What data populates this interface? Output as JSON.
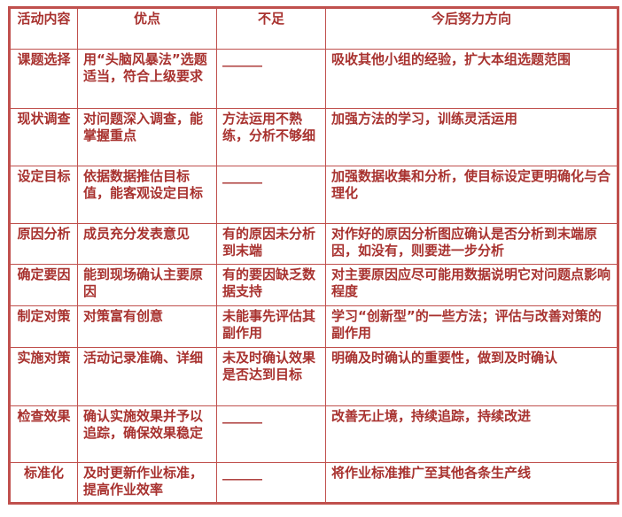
{
  "colors": {
    "text": "#a8322f",
    "border": "#c0504d"
  },
  "headers": [
    "活动内容",
    "优点",
    "不足",
    "今后努力方向"
  ],
  "rows": [
    {
      "activity": "课题选择",
      "strength": "用“头脑风暴法”选题适当，符合上级要求",
      "weakness": "______",
      "direction": "吸收其他小组的经验，扩大本组选题范围"
    },
    {
      "activity": "现状调查",
      "strength": "对问题深入调查，能掌握重点",
      "weakness": "方法运用不熟练，分析不够细",
      "direction": "加强方法的学习，训练灵活运用"
    },
    {
      "activity": "设定目标",
      "strength": "依据数据推估目标值，能客观设定目标",
      "weakness": "______",
      "direction": "加强数据收集和分析，使目标设定更明确化与合理化"
    },
    {
      "activity": "原因分析",
      "strength": "成员充分发表意见",
      "weakness": "有的原因未分析到末端",
      "direction": "对作好的原因分析图应确认是否分析到末端原因，如没有，则要进一步分析"
    },
    {
      "activity": "确定要因",
      "strength": "能到现场确认主要原因",
      "weakness": "有的要因缺乏数据支持",
      "direction": "对主要原因应尽可能用数据说明它对问题点影响程度"
    },
    {
      "activity": "制定对策",
      "strength": "对策富有创意",
      "weakness": "未能事先评估其副作用",
      "direction": "学习“创新型”的一些方法；评估与改善对策的副作用"
    },
    {
      "activity": "实施对策",
      "strength": "活动记录准确、详细",
      "weakness": "未及时确认效果是否达到目标",
      "direction": "明确及时确认的重要性，做到及时确认"
    },
    {
      "activity": "检查效果",
      "strength": "确认实施效果并予以追踪，确保效果稳定",
      "weakness": "______",
      "direction": "改善无止境，持续追踪，持续改进"
    },
    {
      "activity": "标准化",
      "strength": "及时更新作业标准，提高作业效率",
      "weakness": "______",
      "direction": "将作业标准推广至其他各条生产线"
    }
  ]
}
